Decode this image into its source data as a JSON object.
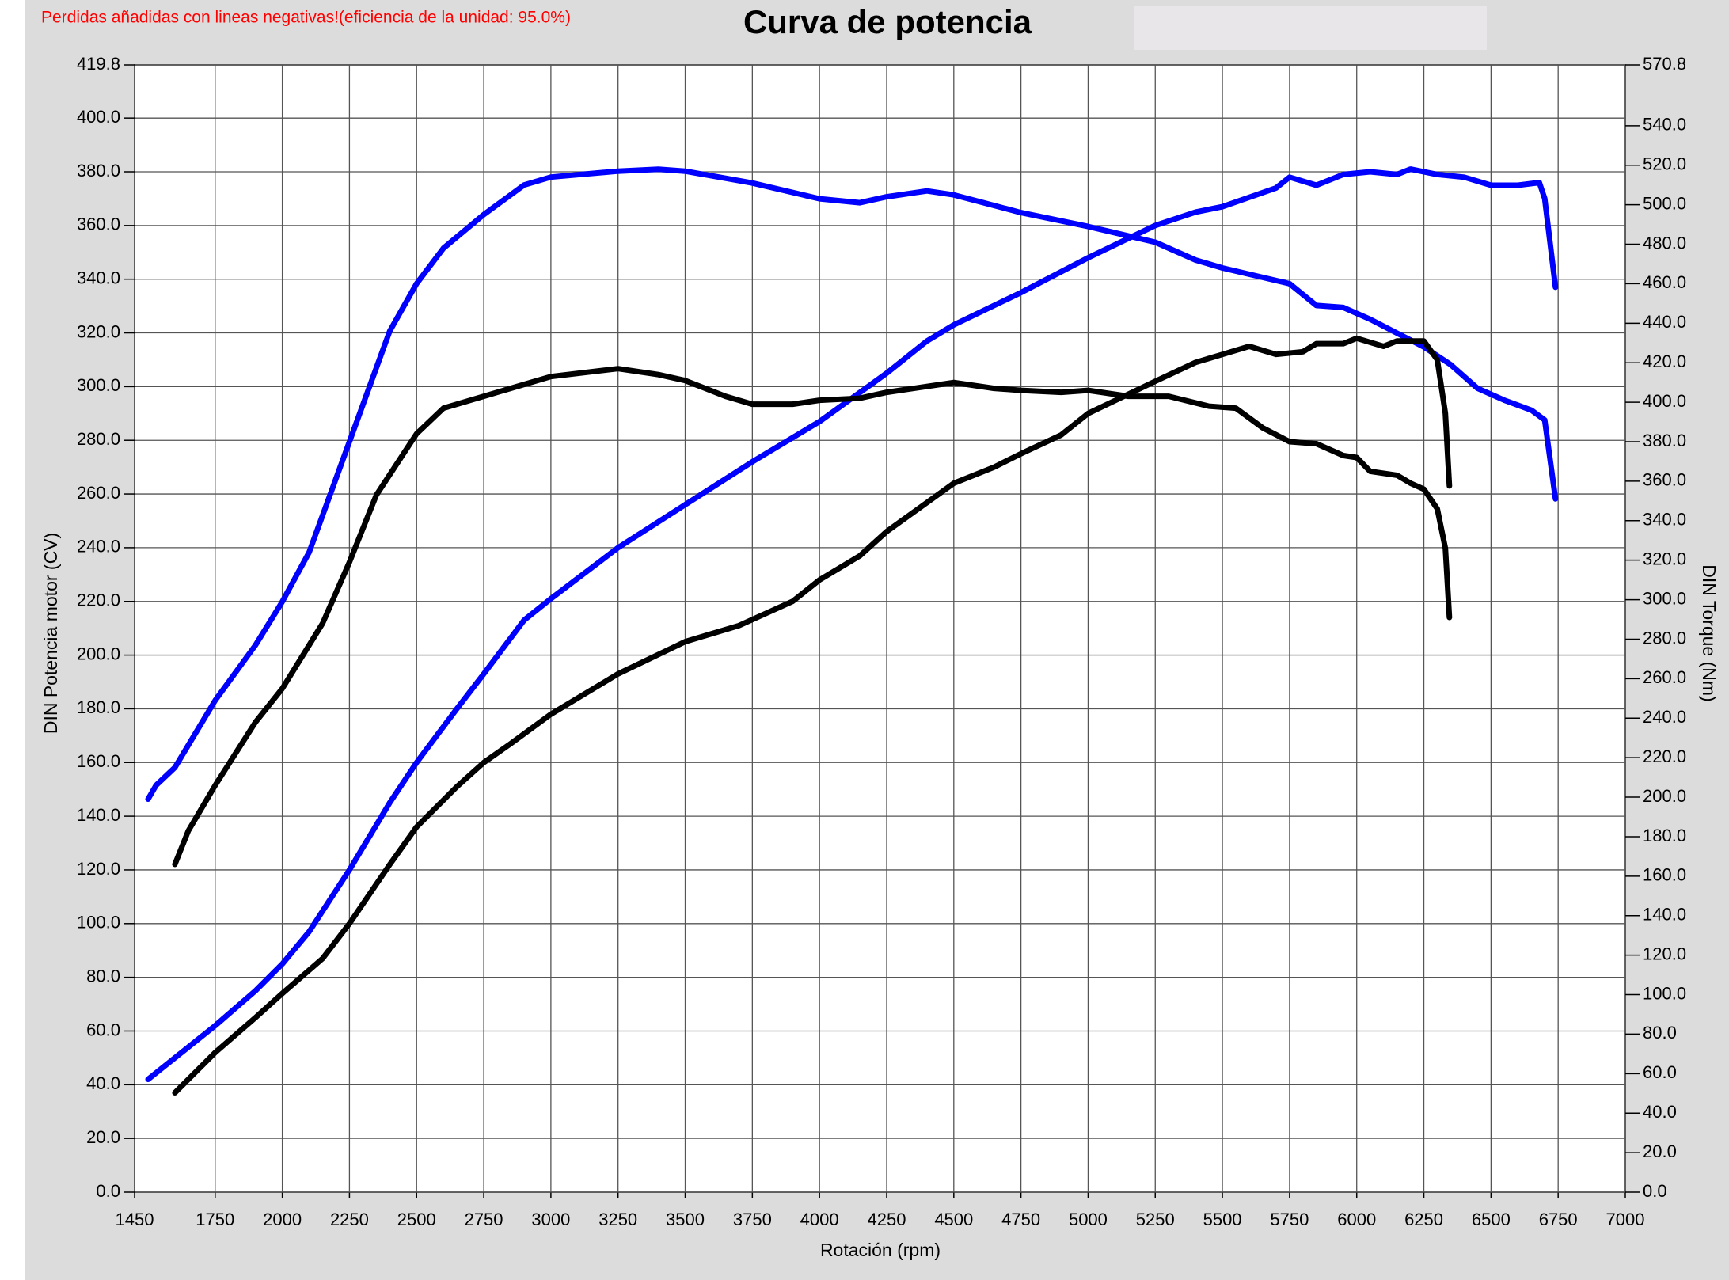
{
  "chart_data": {
    "type": "line",
    "title": "Curva de potencia",
    "note": "Perdidas añadidas con lineas negativas!(eficiencia de la unidad: 95.0%)",
    "xlabel": "Rotación (rpm)",
    "ylabel": "DIN Potencia motor (CV)",
    "y2label": "DIN Torque (Nm)",
    "xlim": [
      1450,
      7000
    ],
    "xticks": [
      1450,
      1750,
      2000,
      2250,
      2500,
      2750,
      3000,
      3250,
      3500,
      3750,
      4000,
      4250,
      4500,
      4750,
      5000,
      5250,
      5500,
      5750,
      6000,
      6250,
      6500,
      6750,
      7000
    ],
    "ylim": [
      0,
      419.8
    ],
    "yticks": [
      {
        "value": 0,
        "label": "0.0"
      },
      {
        "value": 20,
        "label": "20.0"
      },
      {
        "value": 40,
        "label": "40.0"
      },
      {
        "value": 60,
        "label": "60.0"
      },
      {
        "value": 80,
        "label": "80.0"
      },
      {
        "value": 100,
        "label": "100.0"
      },
      {
        "value": 120,
        "label": "120.0"
      },
      {
        "value": 140,
        "label": "140.0"
      },
      {
        "value": 160,
        "label": "160.0"
      },
      {
        "value": 180,
        "label": "180.0"
      },
      {
        "value": 200,
        "label": "200.0"
      },
      {
        "value": 220,
        "label": "220.0"
      },
      {
        "value": 240,
        "label": "240.0"
      },
      {
        "value": 260,
        "label": "260.0"
      },
      {
        "value": 280,
        "label": "280.0"
      },
      {
        "value": 300,
        "label": "300.0"
      },
      {
        "value": 320,
        "label": "320.0"
      },
      {
        "value": 340,
        "label": "340.0"
      },
      {
        "value": 360,
        "label": "360.0"
      },
      {
        "value": 380,
        "label": "380.0"
      },
      {
        "value": 400,
        "label": "400.0"
      },
      419.8
    ],
    "y2lim": [
      0,
      570.8
    ],
    "y2ticks": [
      {
        "value": 0,
        "label": "0.0"
      },
      {
        "value": 20,
        "label": "20.0"
      },
      {
        "value": 40,
        "label": "40.0"
      },
      {
        "value": 60,
        "label": "60.0"
      },
      {
        "value": 80,
        "label": "80.0"
      },
      {
        "value": 100,
        "label": "100.0"
      },
      {
        "value": 120,
        "label": "120.0"
      },
      {
        "value": 140,
        "label": "140.0"
      },
      {
        "value": 160,
        "label": "160.0"
      },
      {
        "value": 180,
        "label": "180.0"
      },
      {
        "value": 200,
        "label": "200.0"
      },
      {
        "value": 220,
        "label": "220.0"
      },
      {
        "value": 240,
        "label": "240.0"
      },
      {
        "value": 260,
        "label": "260.0"
      },
      {
        "value": 280,
        "label": "280.0"
      },
      {
        "value": 300,
        "label": "300.0"
      },
      {
        "value": 320,
        "label": "320.0"
      },
      {
        "value": 340,
        "label": "340.0"
      },
      {
        "value": 360,
        "label": "360.0"
      },
      {
        "value": 380,
        "label": "380.0"
      },
      {
        "value": 400,
        "label": "400.0"
      },
      {
        "value": 420,
        "label": "420.0"
      },
      {
        "value": 440,
        "label": "440.0"
      },
      {
        "value": 460,
        "label": "460.0"
      },
      {
        "value": 480,
        "label": "480.0"
      },
      {
        "value": 500,
        "label": "500.0"
      },
      {
        "value": 520,
        "label": "520.0"
      },
      {
        "value": 540,
        "label": "540.0"
      },
      570.8
    ],
    "grid": true,
    "series": [
      {
        "color": "#0000ff",
        "axis": "y2",
        "x": [
          1500,
          1530,
          1600,
          1750,
          1900,
          2000,
          2100,
          2250,
          2400,
          2500,
          2600,
          2750,
          2900,
          3000,
          3250,
          3400,
          3500,
          3750,
          4000,
          4150,
          4250,
          4400,
          4500,
          4750,
          5000,
          5250,
          5400,
          5500,
          5750,
          5850,
          5950,
          6050,
          6150,
          6250,
          6350,
          6450,
          6550,
          6650,
          6700,
          6740
        ],
        "values": [
          199,
          206,
          215,
          249,
          277,
          299,
          324,
          380,
          436,
          460,
          478,
          495,
          510,
          514,
          517,
          518,
          517,
          511,
          503,
          501,
          504,
          507,
          505,
          496,
          489,
          481,
          472,
          468,
          460,
          449,
          448,
          442,
          435,
          428,
          419,
          407,
          401,
          396,
          391,
          351
        ]
      },
      {
        "color": "#0000ff",
        "x": [
          1500,
          1600,
          1750,
          1900,
          2000,
          2100,
          2250,
          2400,
          2500,
          2650,
          2750,
          2900,
          3000,
          3250,
          3500,
          3750,
          4000,
          4250,
          4400,
          4500,
          4750,
          5000,
          5250,
          5400,
          5500,
          5700,
          5750,
          5850,
          5950,
          6050,
          6150,
          6200,
          6300,
          6400,
          6500,
          6600,
          6680,
          6700,
          6740
        ],
        "values": [
          42,
          50,
          62,
          75,
          85,
          97,
          120,
          145,
          160,
          180,
          193,
          213,
          221,
          240,
          256,
          272,
          287,
          305,
          317,
          323,
          335,
          348,
          360,
          365,
          367,
          374,
          378,
          375,
          379,
          380,
          379,
          381,
          379,
          378,
          375,
          375,
          376,
          370,
          337
        ]
      },
      {
        "color": "#000000",
        "axis": "y2",
        "x": [
          1600,
          1650,
          1750,
          1900,
          2000,
          2150,
          2250,
          2350,
          2500,
          2600,
          2750,
          2900,
          3000,
          3250,
          3400,
          3500,
          3650,
          3750,
          3900,
          4000,
          4150,
          4250,
          4500,
          4650,
          4750,
          4900,
          5000,
          5150,
          5300,
          5450,
          5550,
          5650,
          5750,
          5850,
          5950,
          6000,
          6050,
          6150,
          6200,
          6250,
          6300,
          6330,
          6345
        ],
        "values": [
          166,
          183,
          206,
          238,
          255,
          288,
          319,
          353,
          384,
          397,
          403,
          409,
          413,
          417,
          414,
          411,
          403,
          399,
          399,
          401,
          402,
          405,
          410,
          407,
          406,
          405,
          406,
          403,
          403,
          398,
          397,
          387,
          380,
          379,
          373,
          372,
          365,
          363,
          359,
          356,
          346,
          326,
          291
        ]
      },
      {
        "color": "#000000",
        "x": [
          1600,
          1650,
          1750,
          1900,
          2000,
          2150,
          2250,
          2400,
          2500,
          2650,
          2750,
          2850,
          3000,
          3250,
          3500,
          3700,
          3900,
          4000,
          4150,
          4250,
          4500,
          4650,
          4750,
          4900,
          5000,
          5250,
          5400,
          5500,
          5600,
          5700,
          5800,
          5850,
          5950,
          6000,
          6100,
          6150,
          6250,
          6300,
          6330,
          6345
        ],
        "values": [
          37,
          42,
          52,
          65,
          74,
          87,
          100,
          122,
          136,
          151,
          160,
          167,
          178,
          193,
          205,
          211,
          220,
          228,
          237,
          246,
          264,
          270,
          275,
          282,
          290,
          302,
          309,
          312,
          315,
          312,
          313,
          316,
          316,
          318,
          315,
          317,
          317,
          310,
          290,
          263
        ]
      }
    ]
  }
}
